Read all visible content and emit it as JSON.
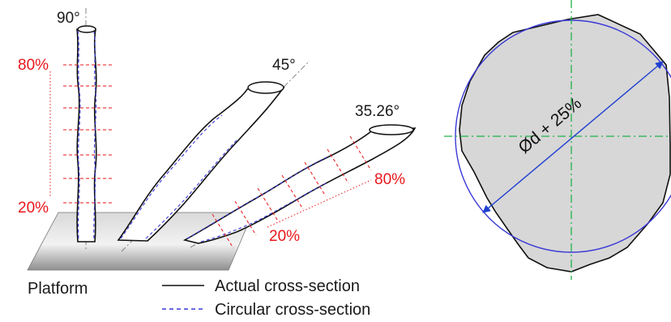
{
  "figure": {
    "angles": {
      "vertical": "90°",
      "inclined_45": "45°",
      "inclined_35": "35.26°"
    },
    "percent_top": "80%",
    "percent_bottom": "20%",
    "platform_label": "Platform",
    "legend": {
      "actual": "Actual cross-section",
      "circular": "Circular cross-section"
    },
    "diameter_label": "Ød + 25%"
  },
  "colors": {
    "actual_line": "#111111",
    "circular_line": "#3a3ad6",
    "section_marks": "#e8161b",
    "center_lines": "#20b24a",
    "cross_section_fill": "#d7d7d7",
    "diameter_arrow": "#1f3fd0"
  }
}
